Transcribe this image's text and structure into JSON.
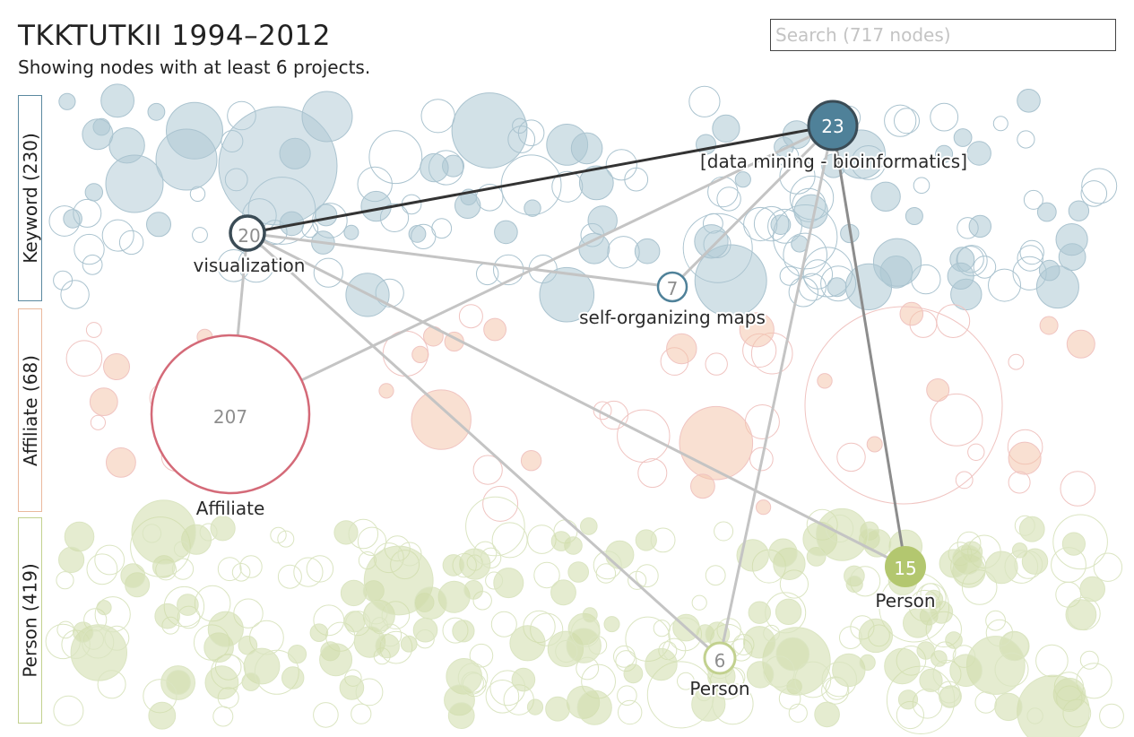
{
  "header": {
    "title": "TKKTUTKII 1994–2012",
    "subtitle": "Showing nodes with at least 6 projects."
  },
  "search": {
    "placeholder": "Search (717 nodes)",
    "value": ""
  },
  "bands": [
    {
      "key": "keyword",
      "label": "Keyword (230)",
      "color": "#5b89a0"
    },
    {
      "key": "affiliate",
      "label": "Affiliate (68)",
      "color": "#eab99d"
    },
    {
      "key": "person",
      "label": "Person (419)",
      "color": "#c2d18f"
    }
  ],
  "colors": {
    "keyword_dark": "#4f8199",
    "affiliate_dark": "#d46a78",
    "person_dark": "#b3c76f"
  },
  "highlighted_nodes": [
    {
      "id": "data-mining",
      "label": "[data mining - bioinformatics]",
      "count": "23",
      "group": "keyword"
    },
    {
      "id": "visualization",
      "label": "visualization",
      "count": "20",
      "group": "keyword"
    },
    {
      "id": "som",
      "label": "self-organizing maps",
      "count": "7",
      "group": "keyword"
    },
    {
      "id": "affiliate",
      "label": "Affiliate",
      "count": "207",
      "group": "affiliate"
    },
    {
      "id": "person-15",
      "label": "Person",
      "count": "15",
      "group": "person"
    },
    {
      "id": "person-6",
      "label": "Person",
      "count": "6",
      "group": "person"
    }
  ]
}
